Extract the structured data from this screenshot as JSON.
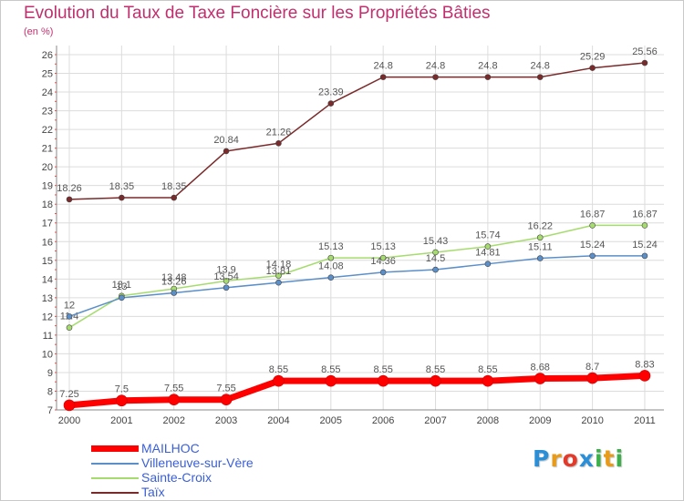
{
  "header": {
    "title": "Evolution du Taux de Taxe Foncière sur les Propriétés Bâties",
    "subtitle": "(en %)"
  },
  "brand": {
    "letters": [
      "P",
      "r",
      "o",
      "x",
      "i",
      "t",
      "i"
    ],
    "colors": [
      "#2a8fd6",
      "#e89b1a",
      "#e23a2b",
      "#2a8fd6",
      "#3cb04a",
      "#e89b1a",
      "#3cb04a"
    ]
  },
  "chart_data": {
    "type": "line",
    "title": "Evolution du Taux de Taxe Foncière sur les Propriétés Bâties",
    "ylabel": "(en %)",
    "xlabel": "",
    "x": [
      "2000",
      "2001",
      "2002",
      "2003",
      "2004",
      "2005",
      "2006",
      "2007",
      "2008",
      "2009",
      "2010",
      "2011"
    ],
    "ylim": [
      7,
      26
    ],
    "yticks": [
      7,
      8,
      9,
      10,
      11,
      12,
      13,
      14,
      15,
      16,
      17,
      18,
      19,
      20,
      21,
      22,
      23,
      24,
      25,
      26
    ],
    "grid": true,
    "legend": "bottom-left",
    "series": [
      {
        "name": "MAILHOC",
        "color": "#ff0000",
        "values": [
          7.25,
          7.5,
          7.55,
          7.55,
          8.55,
          8.55,
          8.55,
          8.55,
          8.55,
          8.68,
          8.7,
          8.83
        ],
        "labels": [
          "7.25",
          "7.5",
          "7.55",
          "7.55",
          "8.55",
          "8.55",
          "8.55",
          "8.55",
          "8.55",
          "8.68",
          "8.7",
          "8.83"
        ]
      },
      {
        "name": "Villeneuve-sur-Vère",
        "color": "#5b8fc9",
        "values": [
          12,
          13,
          13.26,
          13.54,
          13.81,
          14.08,
          14.36,
          14.5,
          14.81,
          15.11,
          15.24,
          15.24
        ],
        "labels": [
          "12",
          "13",
          "13.26",
          "13.54",
          "13.81",
          "14.08",
          "14.36",
          "14.5",
          "14.81",
          "15.11",
          "15.24",
          "15.24"
        ]
      },
      {
        "name": "Sainte-Croix",
        "color": "#a6dc6e",
        "values": [
          11.4,
          13.1,
          13.48,
          13.9,
          14.18,
          15.13,
          15.13,
          15.43,
          15.74,
          16.22,
          16.87,
          16.87
        ],
        "labels": [
          "11.4",
          "13.1",
          "13.48",
          "13.9",
          "14.18",
          "15.13",
          "15.13",
          "15.43",
          "15.74",
          "16.22",
          "16.87",
          "16.87"
        ]
      },
      {
        "name": "Taïx",
        "color": "#7a2a2a",
        "values": [
          18.26,
          18.35,
          18.35,
          20.84,
          21.26,
          23.39,
          24.8,
          24.8,
          24.8,
          24.8,
          25.29,
          25.56
        ],
        "labels": [
          "18.26",
          "18.35",
          "18.35",
          "20.84",
          "21.26",
          "23.39",
          "24.8",
          "24.8",
          "24.8",
          "24.8",
          "25.29",
          "25.56"
        ]
      }
    ]
  }
}
